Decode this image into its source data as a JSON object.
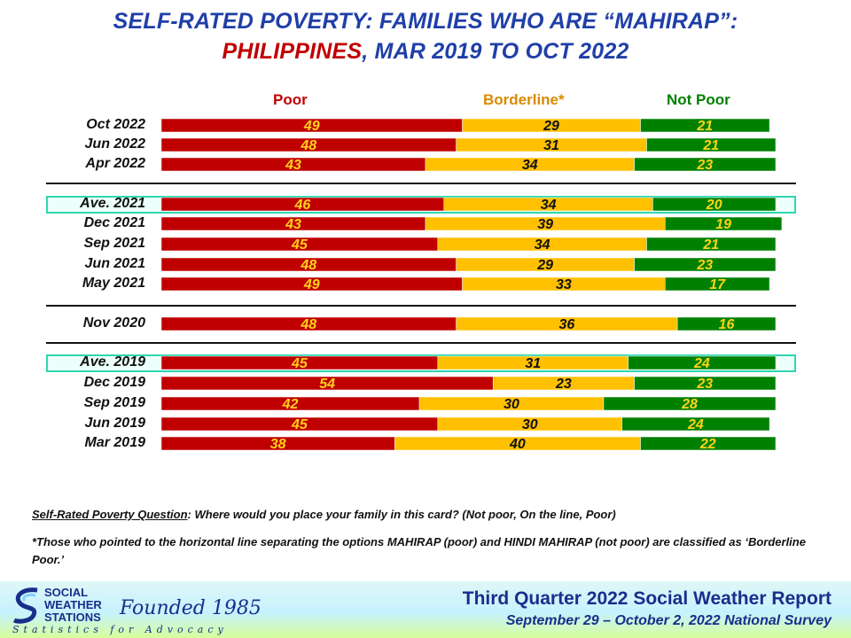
{
  "title_line1": "SELF-RATED POVERTY: FAMILIES WHO ARE “MAHIRAP”:",
  "title_line2_red": "PHILIPPINES",
  "title_line2_rest": ", MAR 2019 TO OCT 2022",
  "chart_data": {
    "type": "bar",
    "orientation": "horizontal",
    "stacked": true,
    "title": "SELF-RATED POVERTY: FAMILIES WHO ARE “MAHIRAP”: PHILIPPINES, MAR 2019 TO OCT 2022",
    "categories": [
      "Oct 2022",
      "Jun 2022",
      "Apr 2022",
      "Ave. 2021",
      "Dec 2021",
      "Sep 2021",
      "Jun 2021",
      "May 2021",
      "Nov 2020",
      "Ave. 2019",
      "Dec 2019",
      "Sep 2019",
      "Jun 2019",
      "Mar 2019"
    ],
    "series": [
      {
        "name": "Poor",
        "color": "#c00000",
        "label_color": "#ffd21a",
        "values": [
          49,
          48,
          43,
          46,
          43,
          45,
          48,
          49,
          48,
          45,
          54,
          42,
          45,
          38
        ]
      },
      {
        "name": "Borderline*",
        "color": "#ffc000",
        "label_color": "#111111",
        "values": [
          29,
          31,
          34,
          34,
          39,
          34,
          29,
          33,
          36,
          31,
          23,
          30,
          30,
          40
        ]
      },
      {
        "name": "Not Poor",
        "color": "#008000",
        "label_color": "#ffd21a",
        "values": [
          21,
          21,
          23,
          20,
          19,
          21,
          23,
          17,
          16,
          24,
          23,
          28,
          24,
          22
        ]
      }
    ],
    "highlighted_rows": [
      "Ave. 2021",
      "Ave. 2019"
    ],
    "legend": "top",
    "xlim": [
      0,
      100
    ],
    "grid": false
  },
  "legend_labels": {
    "poor": "Poor",
    "borderline": "Borderline*",
    "notpoor": "Not Poor"
  },
  "notes": {
    "q_label": "Self-Rated Poverty Question",
    "q_text": ":  Where would you place your family in this card?  (Not poor, On the line, Poor)",
    "borderline": "*Those who pointed to the horizontal line separating the options MAHIRAP (poor) and HINDI MAHIRAP (not poor) are classified as ‘Borderline Poor.’"
  },
  "footer": {
    "logo_l1": "SOCIAL",
    "logo_l2": "WEATHER",
    "logo_l3": "STATIONS",
    "founded": "Founded 1985",
    "tagline": "Statistics for Advocacy",
    "report": "Third Quarter 2022 Social Weather Report",
    "survey": "September 29 – October 2, 2022 National Survey"
  }
}
